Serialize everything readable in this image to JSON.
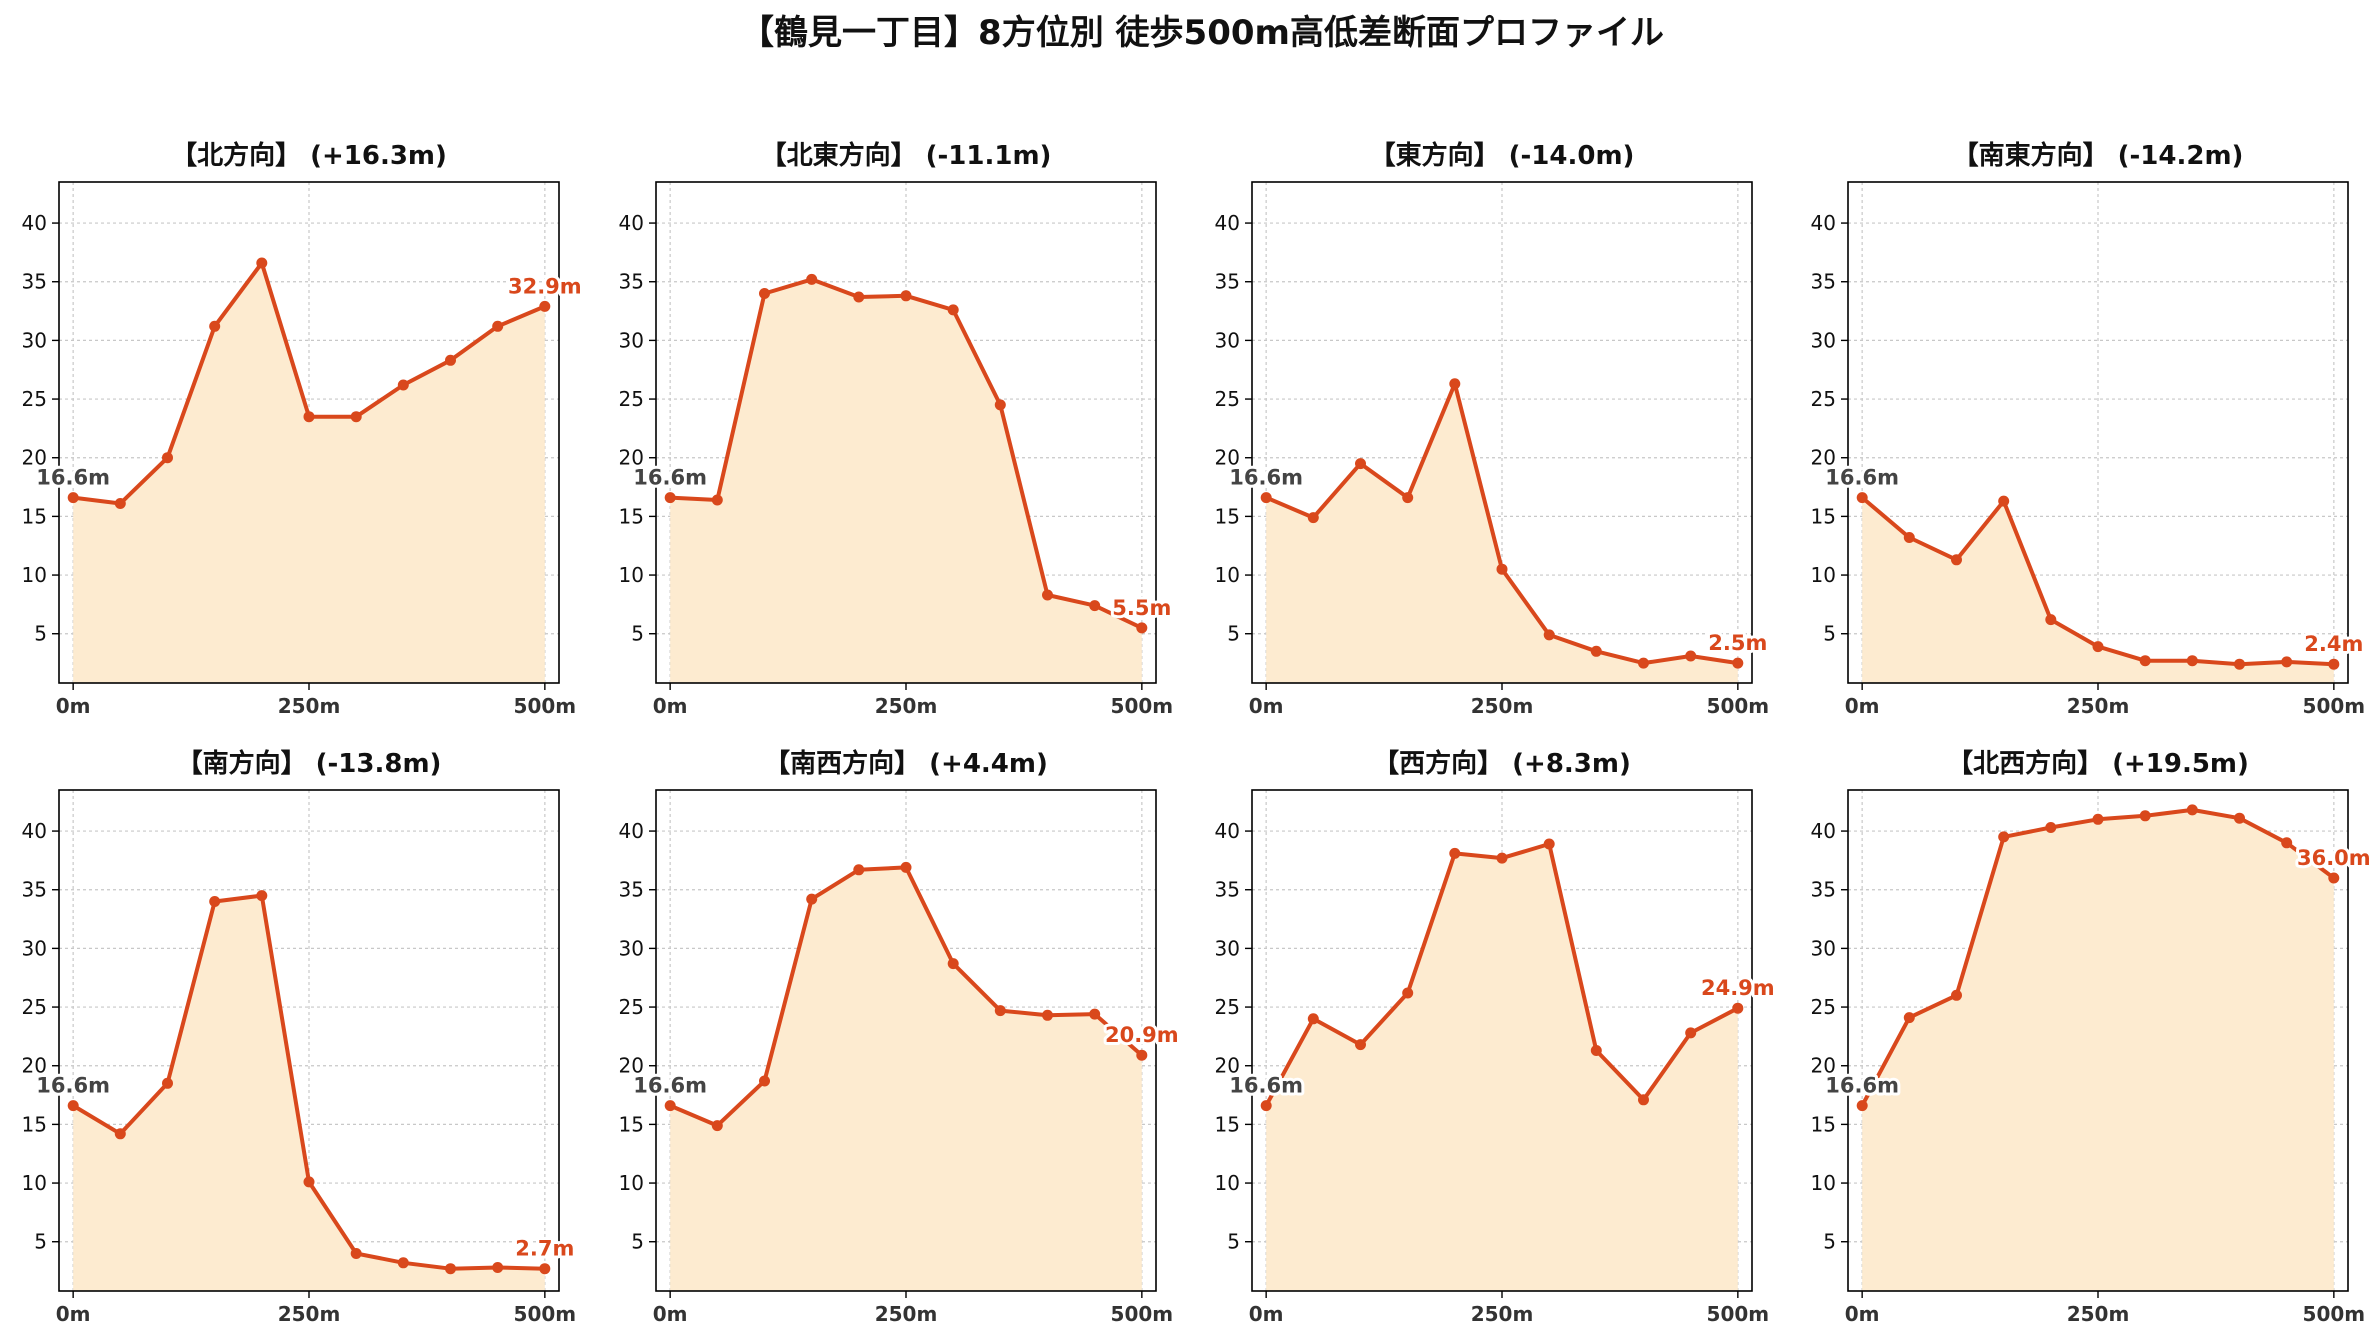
{
  "title": "【鶴見一丁目】8方位別 徒歩500m高低差断面プロファイル",
  "colors": {
    "line": "#d9481c",
    "fill": "#fdebd0",
    "start_label": "#444444",
    "end_label": "#d9481c",
    "grid": "#c8c8c8",
    "axis": "#000000"
  },
  "chart_data": [
    {
      "type": "area",
      "title": "【北方向】 (+16.3m)",
      "x": [
        0,
        50,
        100,
        150,
        200,
        250,
        300,
        350,
        400,
        450,
        500
      ],
      "values": [
        16.6,
        16.1,
        20.0,
        31.2,
        36.6,
        23.5,
        23.5,
        26.2,
        28.3,
        31.2,
        32.9
      ],
      "start_label": "16.6m",
      "end_label": "32.9m",
      "xticks": [
        "0m",
        "250m",
        "500m"
      ],
      "yticks": [
        5,
        10,
        15,
        20,
        25,
        30,
        35,
        40
      ],
      "xlim": [
        -15,
        515
      ],
      "ylim": [
        0.8,
        43.5
      ],
      "grid": true
    },
    {
      "type": "area",
      "title": "【北東方向】 (-11.1m)",
      "x": [
        0,
        50,
        100,
        150,
        200,
        250,
        300,
        350,
        400,
        450,
        500
      ],
      "values": [
        16.6,
        16.4,
        34.0,
        35.2,
        33.7,
        33.8,
        32.6,
        24.5,
        8.3,
        7.4,
        5.5
      ],
      "start_label": "16.6m",
      "end_label": "5.5m",
      "xticks": [
        "0m",
        "250m",
        "500m"
      ],
      "yticks": [
        5,
        10,
        15,
        20,
        25,
        30,
        35,
        40
      ],
      "xlim": [
        -15,
        515
      ],
      "ylim": [
        0.8,
        43.5
      ],
      "grid": true
    },
    {
      "type": "area",
      "title": "【東方向】 (-14.0m)",
      "x": [
        0,
        50,
        100,
        150,
        200,
        250,
        300,
        350,
        400,
        450,
        500
      ],
      "values": [
        16.6,
        14.9,
        19.5,
        16.6,
        26.3,
        10.5,
        4.9,
        3.5,
        2.5,
        3.1,
        2.5
      ],
      "start_label": "16.6m",
      "end_label": "2.5m",
      "xticks": [
        "0m",
        "250m",
        "500m"
      ],
      "yticks": [
        5,
        10,
        15,
        20,
        25,
        30,
        35,
        40
      ],
      "xlim": [
        -15,
        515
      ],
      "ylim": [
        0.8,
        43.5
      ],
      "grid": true
    },
    {
      "type": "area",
      "title": "【南東方向】 (-14.2m)",
      "x": [
        0,
        50,
        100,
        150,
        200,
        250,
        300,
        350,
        400,
        450,
        500
      ],
      "values": [
        16.6,
        13.2,
        11.3,
        16.3,
        6.2,
        3.9,
        2.7,
        2.7,
        2.4,
        2.6,
        2.4
      ],
      "start_label": "16.6m",
      "end_label": "2.4m",
      "xticks": [
        "0m",
        "250m",
        "500m"
      ],
      "yticks": [
        5,
        10,
        15,
        20,
        25,
        30,
        35,
        40
      ],
      "xlim": [
        -15,
        515
      ],
      "ylim": [
        0.8,
        43.5
      ],
      "grid": true
    },
    {
      "type": "area",
      "title": "【南方向】 (-13.8m)",
      "x": [
        0,
        50,
        100,
        150,
        200,
        250,
        300,
        350,
        400,
        450,
        500
      ],
      "values": [
        16.6,
        14.2,
        18.5,
        34.0,
        34.5,
        10.1,
        4.0,
        3.2,
        2.7,
        2.8,
        2.7
      ],
      "start_label": "16.6m",
      "end_label": "2.7m",
      "xticks": [
        "0m",
        "250m",
        "500m"
      ],
      "yticks": [
        5,
        10,
        15,
        20,
        25,
        30,
        35,
        40
      ],
      "xlim": [
        -15,
        515
      ],
      "ylim": [
        0.8,
        43.5
      ],
      "grid": true
    },
    {
      "type": "area",
      "title": "【南西方向】 (+4.4m)",
      "x": [
        0,
        50,
        100,
        150,
        200,
        250,
        300,
        350,
        400,
        450,
        500
      ],
      "values": [
        16.6,
        14.9,
        18.7,
        34.2,
        36.7,
        36.9,
        28.7,
        24.7,
        24.3,
        24.4,
        20.9
      ],
      "start_label": "16.6m",
      "end_label": "20.9m",
      "xticks": [
        "0m",
        "250m",
        "500m"
      ],
      "yticks": [
        5,
        10,
        15,
        20,
        25,
        30,
        35,
        40
      ],
      "xlim": [
        -15,
        515
      ],
      "ylim": [
        0.8,
        43.5
      ],
      "grid": true
    },
    {
      "type": "area",
      "title": "【西方向】 (+8.3m)",
      "x": [
        0,
        50,
        100,
        150,
        200,
        250,
        300,
        350,
        400,
        450,
        500
      ],
      "values": [
        16.6,
        24.0,
        21.8,
        26.2,
        38.1,
        37.7,
        38.9,
        21.3,
        17.1,
        22.8,
        24.9
      ],
      "start_label": "16.6m",
      "end_label": "24.9m",
      "xticks": [
        "0m",
        "250m",
        "500m"
      ],
      "yticks": [
        5,
        10,
        15,
        20,
        25,
        30,
        35,
        40
      ],
      "xlim": [
        -15,
        515
      ],
      "ylim": [
        0.8,
        43.5
      ],
      "grid": true
    },
    {
      "type": "area",
      "title": "【北西方向】 (+19.5m)",
      "x": [
        0,
        50,
        100,
        150,
        200,
        250,
        300,
        350,
        400,
        450,
        500
      ],
      "values": [
        16.6,
        24.1,
        26.0,
        39.5,
        40.3,
        41.0,
        41.3,
        41.8,
        41.1,
        39.0,
        36.0
      ],
      "start_label": "16.6m",
      "end_label": "36.0m",
      "xticks": [
        "0m",
        "250m",
        "500m"
      ],
      "yticks": [
        5,
        10,
        15,
        20,
        25,
        30,
        35,
        40
      ],
      "xlim": [
        -15,
        515
      ],
      "ylim": [
        0.8,
        43.5
      ],
      "grid": true
    }
  ]
}
